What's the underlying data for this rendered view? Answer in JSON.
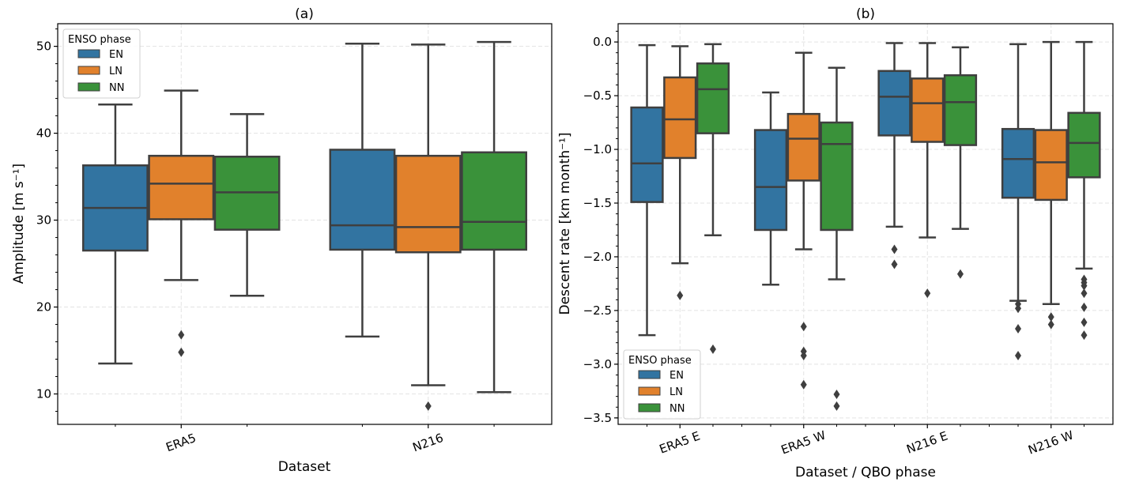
{
  "chart_data": [
    {
      "type": "box",
      "title": "(a)",
      "xlabel": "Dataset",
      "ylabel": "Amplitude [m s⁻¹]",
      "categories": [
        "ERA5",
        "N216"
      ],
      "ylim": [
        6.5,
        52.6
      ],
      "yticks": [
        10,
        20,
        30,
        40,
        50
      ],
      "ytick_labels": [
        "10",
        "20",
        "30",
        "40",
        "50"
      ],
      "grid": true,
      "legend": {
        "title": "ENSO phase",
        "placement": "top-left",
        "entries": [
          "EN",
          "LN",
          "NN"
        ]
      },
      "series": [
        {
          "name": "EN",
          "color": "#3274a1",
          "boxes": [
            {
              "category": "ERA5",
              "whislo": 13.5,
              "q1": 26.5,
              "med": 31.4,
              "q3": 36.3,
              "whishi": 43.3,
              "fliers": []
            },
            {
              "category": "N216",
              "whislo": 16.6,
              "q1": 26.6,
              "med": 29.4,
              "q3": 38.1,
              "whishi": 50.3,
              "fliers": []
            }
          ]
        },
        {
          "name": "LN",
          "color": "#e1812c",
          "boxes": [
            {
              "category": "ERA5",
              "whislo": 23.1,
              "q1": 30.1,
              "med": 34.2,
              "q3": 37.4,
              "whishi": 44.9,
              "fliers": [
                16.8,
                14.8
              ]
            },
            {
              "category": "N216",
              "whislo": 11.0,
              "q1": 26.3,
              "med": 29.2,
              "q3": 37.4,
              "whishi": 50.2,
              "fliers": [
                8.6
              ]
            }
          ]
        },
        {
          "name": "NN",
          "color": "#3a923a",
          "boxes": [
            {
              "category": "ERA5",
              "whislo": 21.3,
              "q1": 28.9,
              "med": 33.2,
              "q3": 37.3,
              "whishi": 42.2,
              "fliers": []
            },
            {
              "category": "N216",
              "whislo": 10.2,
              "q1": 26.6,
              "med": 29.8,
              "q3": 37.8,
              "whishi": 50.5,
              "fliers": []
            }
          ]
        }
      ]
    },
    {
      "type": "box",
      "title": "(b)",
      "xlabel": "Dataset / QBO phase",
      "ylabel": "Descent rate [km month⁻¹]",
      "categories": [
        "ERA5 E",
        "ERA5 W",
        "N216 E",
        "N216 W"
      ],
      "ylim": [
        -3.56,
        0.17
      ],
      "yticks": [
        0.0,
        -0.5,
        -1.0,
        -1.5,
        -2.0,
        -2.5,
        -3.0,
        -3.5
      ],
      "ytick_labels": [
        "0.0",
        "−0.5",
        "−1.0",
        "−1.5",
        "−2.0",
        "−2.5",
        "−3.0",
        "−3.5"
      ],
      "grid": true,
      "legend": {
        "title": "ENSO phase",
        "placement": "bottom-left",
        "entries": [
          "EN",
          "LN",
          "NN"
        ]
      },
      "series": [
        {
          "name": "EN",
          "color": "#3274a1",
          "boxes": [
            {
              "category": "ERA5 E",
              "whislo": -2.73,
              "q1": -1.49,
              "med": -1.13,
              "q3": -0.61,
              "whishi": -0.03,
              "fliers": []
            },
            {
              "category": "ERA5 W",
              "whislo": -2.26,
              "q1": -1.75,
              "med": -1.35,
              "q3": -0.82,
              "whishi": -0.47,
              "fliers": []
            },
            {
              "category": "N216 E",
              "whislo": -1.72,
              "q1": -0.87,
              "med": -0.51,
              "q3": -0.27,
              "whishi": -0.01,
              "fliers": [
                -1.93,
                -2.07
              ]
            },
            {
              "category": "N216 W",
              "whislo": -2.41,
              "q1": -1.45,
              "med": -1.09,
              "q3": -0.81,
              "whishi": -0.02,
              "fliers": [
                -2.44,
                -2.48,
                -2.67,
                -2.92
              ]
            }
          ]
        },
        {
          "name": "LN",
          "color": "#e1812c",
          "boxes": [
            {
              "category": "ERA5 E",
              "whislo": -2.06,
              "q1": -1.08,
              "med": -0.72,
              "q3": -0.33,
              "whishi": -0.04,
              "fliers": [
                -2.36
              ]
            },
            {
              "category": "ERA5 W",
              "whislo": -1.93,
              "q1": -1.29,
              "med": -0.9,
              "q3": -0.67,
              "whishi": -0.1,
              "fliers": [
                -2.65,
                -2.88,
                -2.92,
                -3.19
              ]
            },
            {
              "category": "N216 E",
              "whislo": -1.82,
              "q1": -0.93,
              "med": -0.57,
              "q3": -0.34,
              "whishi": -0.01,
              "fliers": [
                -2.34
              ]
            },
            {
              "category": "N216 W",
              "whislo": -2.44,
              "q1": -1.47,
              "med": -1.12,
              "q3": -0.82,
              "whishi": 0.0,
              "fliers": [
                -2.56,
                -2.63
              ]
            }
          ]
        },
        {
          "name": "NN",
          "color": "#3a923a",
          "boxes": [
            {
              "category": "ERA5 E",
              "whislo": -1.8,
              "q1": -0.85,
              "med": -0.44,
              "q3": -0.2,
              "whishi": -0.02,
              "fliers": [
                -2.86
              ]
            },
            {
              "category": "ERA5 W",
              "whislo": -2.21,
              "q1": -1.75,
              "med": -0.95,
              "q3": -0.75,
              "whishi": -0.24,
              "fliers": [
                -3.28,
                -3.39
              ]
            },
            {
              "category": "N216 E",
              "whislo": -1.74,
              "q1": -0.96,
              "med": -0.56,
              "q3": -0.31,
              "whishi": -0.05,
              "fliers": [
                -2.16
              ]
            },
            {
              "category": "N216 W",
              "whislo": -2.11,
              "q1": -1.26,
              "med": -0.94,
              "q3": -0.66,
              "whishi": 0.0,
              "fliers": [
                -2.21,
                -2.24,
                -2.27,
                -2.34,
                -2.47,
                -2.61,
                -2.73
              ]
            }
          ]
        }
      ]
    }
  ]
}
